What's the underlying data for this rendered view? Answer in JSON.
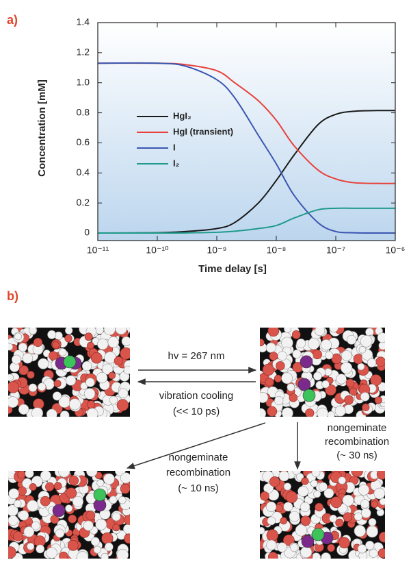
{
  "panel_labels": [
    "a)",
    "b)"
  ],
  "chart_data": {
    "type": "line",
    "xlabel": "Time delay [s]",
    "ylabel": "Concentration [mM]",
    "x": [
      1e-11,
      1e-10,
      3e-10,
      1e-09,
      2e-09,
      5e-09,
      1e-08,
      2e-08,
      5e-08,
      1e-07,
      2e-07,
      5e-07,
      1e-06
    ],
    "series": [
      {
        "name": "HgI₂",
        "color": "#1a1a1a",
        "values": [
          0,
          0.002,
          0.01,
          0.03,
          0.07,
          0.2,
          0.35,
          0.52,
          0.72,
          0.79,
          0.81,
          0.815,
          0.815
        ]
      },
      {
        "name": "HgI (transient)",
        "color": "#e8403a",
        "values": [
          1.13,
          1.13,
          1.12,
          1.08,
          1.0,
          0.88,
          0.75,
          0.58,
          0.42,
          0.36,
          0.335,
          0.33,
          0.33
        ]
      },
      {
        "name": "I",
        "color": "#3b56b0",
        "values": [
          1.13,
          1.13,
          1.11,
          1.02,
          0.9,
          0.65,
          0.46,
          0.25,
          0.07,
          0.01,
          0.002,
          0,
          0
        ]
      },
      {
        "name": "I₂",
        "color": "#1f9a8a",
        "values": [
          0,
          0,
          0.001,
          0.005,
          0.012,
          0.03,
          0.05,
          0.1,
          0.155,
          0.165,
          0.165,
          0.165,
          0.165
        ]
      }
    ],
    "xscale": "log",
    "xlim": [
      1e-11,
      1e-06
    ],
    "xticks": [
      {
        "value": 1e-11,
        "label": "10⁻¹¹"
      },
      {
        "value": 1e-10,
        "label": "10⁻¹⁰"
      },
      {
        "value": 1e-09,
        "label": "10⁻⁹"
      },
      {
        "value": 1e-08,
        "label": "10⁻⁸"
      },
      {
        "value": 1e-07,
        "label": "10⁻⁷"
      },
      {
        "value": 1e-06,
        "label": "10⁻⁶"
      }
    ],
    "ylim": [
      -0.05,
      1.4
    ],
    "yticks": [
      0,
      0.2,
      0.4,
      0.6,
      0.8,
      {
        "value": 1,
        "label": "1.0"
      },
      1.2,
      1.4
    ]
  },
  "diagram": {
    "excitation": [
      "hv = 267 nm"
    ],
    "cooling": [
      "vibration cooling",
      "(<< 10 ps)"
    ],
    "recombination_right": [
      "nongeminate",
      "recombination",
      "(~ 30 ns)"
    ],
    "recombination_diagonal": [
      "nongeminate",
      "recombination",
      "(~ 10 ns)"
    ]
  }
}
